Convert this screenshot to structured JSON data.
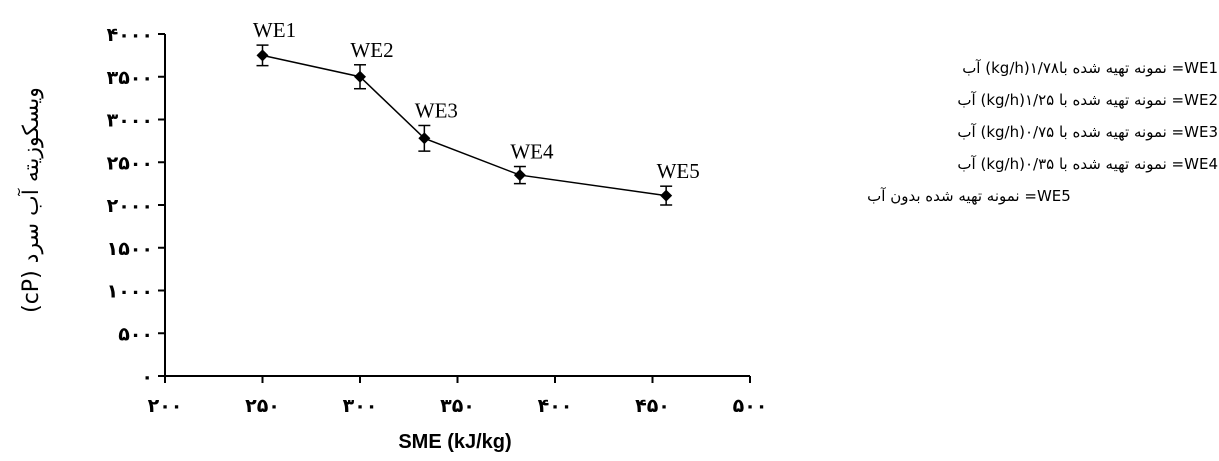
{
  "chart_data": {
    "type": "line",
    "xlabel": "SME (kJ/kg)",
    "ylabel": "ویسکوزیته آب سرد (cP)",
    "xlim": [
      200,
      500
    ],
    "ylim": [
      0,
      4000
    ],
    "x_ticks": [
      "۲۰۰",
      "۲۵۰",
      "۳۰۰",
      "۳۵۰",
      "۴۰۰",
      "۴۵۰",
      "۵۰۰"
    ],
    "y_ticks": [
      "۰",
      "۵۰۰",
      "۱۰۰۰",
      "۱۵۰۰",
      "۲۰۰۰",
      "۲۵۰۰",
      "۳۰۰۰",
      "۳۵۰۰",
      "۴۰۰۰"
    ],
    "series": [
      {
        "points": [
          {
            "label": "WE1",
            "x": 250,
            "y": 3750,
            "err": 120
          },
          {
            "label": "WE2",
            "x": 300,
            "y": 3500,
            "err": 140
          },
          {
            "label": "WE3",
            "x": 333,
            "y": 2780,
            "err": 150
          },
          {
            "label": "WE4",
            "x": 382,
            "y": 2350,
            "err": 100
          },
          {
            "label": "WE5",
            "x": 457,
            "y": 2110,
            "err": 110
          }
        ]
      }
    ],
    "grid": false,
    "marker": "diamond",
    "error_bars": true
  },
  "legend": [
    "WE1= نمونه تهیه شده با۱/۷۸(kg/h) آب",
    "WE2= نمونه تهیه شده با ۱/۲۵(kg/h) آب",
    "WE3=  نمونه تهیه شده با ۰/۷۵(kg/h) آب",
    "WE4= نمونه تهیه شده با ۰/۳۵(kg/h) آب",
    "WE5= نمونه تهیه شده بدون آب"
  ]
}
